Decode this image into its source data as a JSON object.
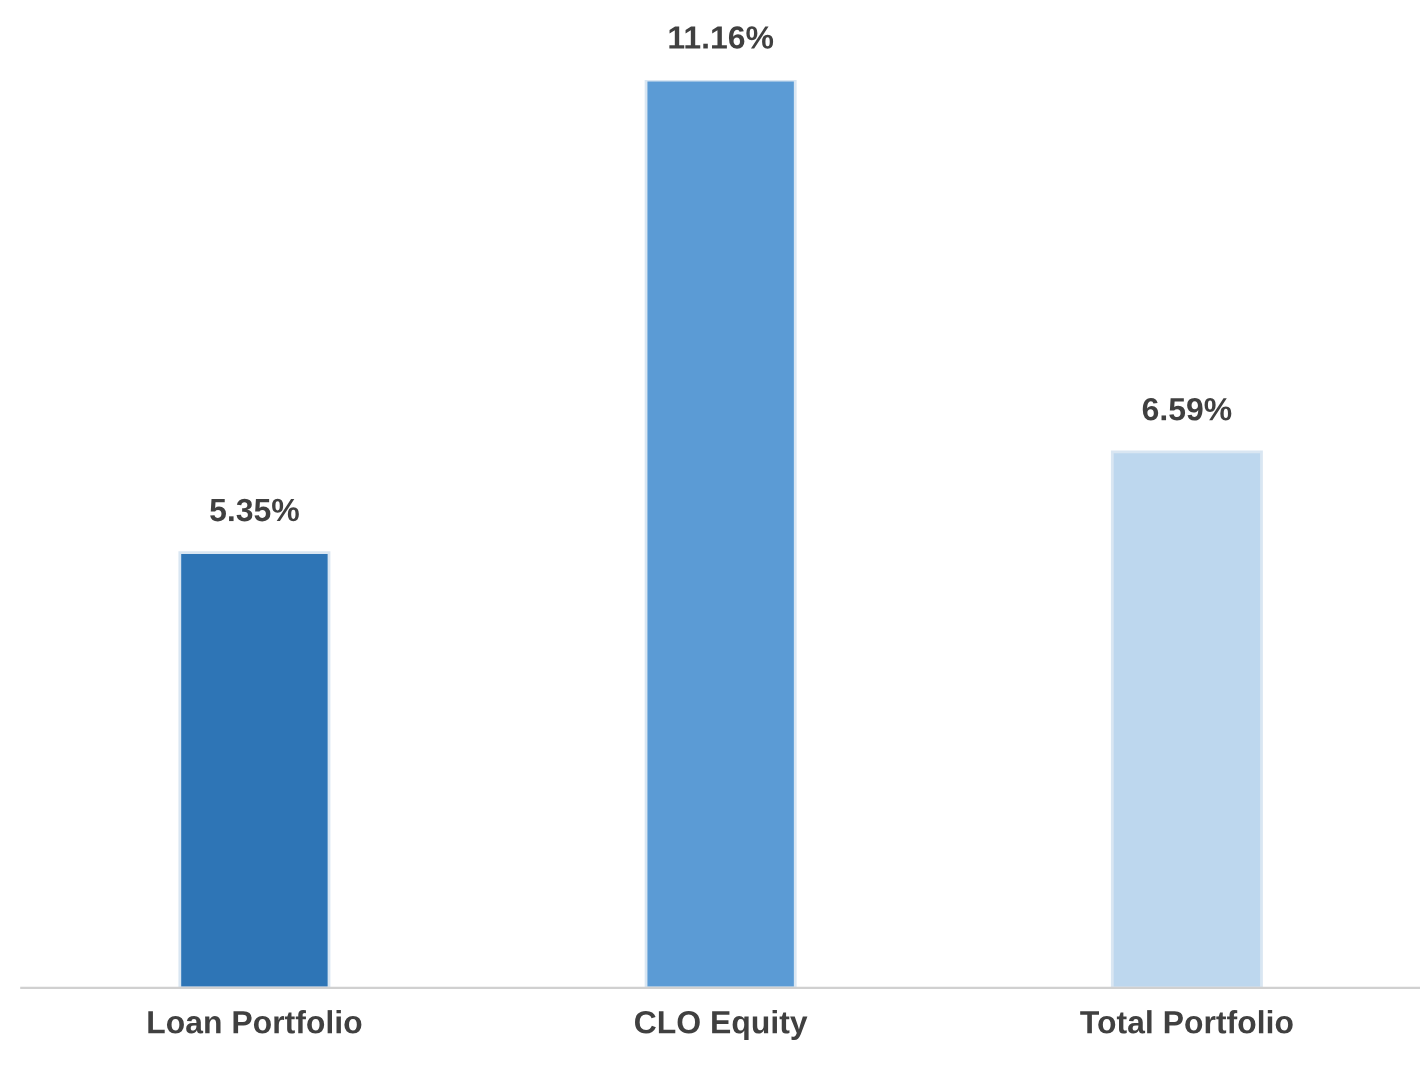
{
  "chart_data": {
    "type": "bar",
    "categories": [
      "Loan Portfolio",
      "CLO Equity",
      "Total Portfolio"
    ],
    "values": [
      5.35,
      11.16,
      6.59
    ],
    "colors": [
      "#2e75b6",
      "#5b9bd5",
      "#bdd7ee"
    ],
    "value_labels": [
      "5.35%",
      "11.16%",
      "6.59%"
    ],
    "tick_labels": "x",
    "grid": false,
    "legend": false
  }
}
